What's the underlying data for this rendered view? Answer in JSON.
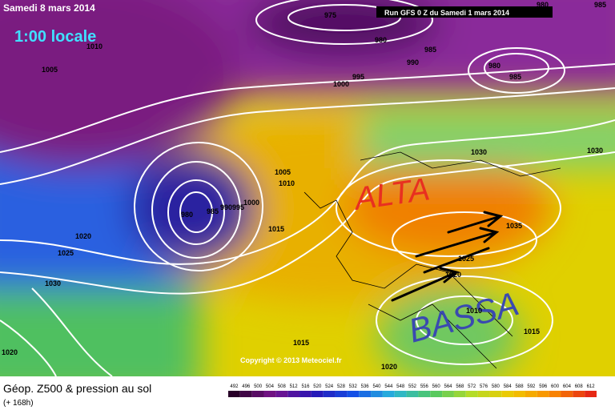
{
  "header": {
    "date": "Samedi 8 mars 2014",
    "time": "1:00 locale",
    "run": "Run GFS 0 Z du Samedi 1 mars 2014"
  },
  "annotations": {
    "high": "ALTA",
    "low": "BASSA"
  },
  "isobars": [
    975,
    980,
    985,
    980,
    985,
    990,
    980,
    985,
    995,
    1000,
    1010,
    1005,
    1005,
    1010,
    980,
    985,
    990,
    995,
    1000,
    1015,
    1020,
    1025,
    1030,
    1020,
    1030,
    1030,
    1035,
    1025,
    1020,
    1010,
    1015,
    1015,
    1020
  ],
  "copyright": "Copyright © 2013 Meteociel.fr",
  "footer": {
    "title": "Géop. Z500 & pression au sol",
    "lead": "(+ 168h)"
  },
  "colorbar": {
    "ticks": [
      492,
      496,
      500,
      504,
      508,
      512,
      516,
      520,
      524,
      528,
      532,
      536,
      540,
      544,
      548,
      552,
      556,
      560,
      564,
      568,
      572,
      576,
      580,
      584,
      588,
      592,
      596,
      600,
      604,
      608,
      612
    ]
  }
}
